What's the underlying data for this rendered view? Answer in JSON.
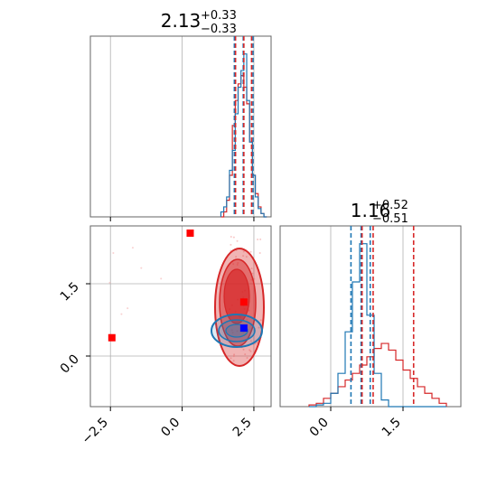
{
  "chart_data": {
    "type": "corner",
    "colors": {
      "blue": "#1f77b4",
      "red": "#d62728",
      "marker_red": "#ff0000",
      "marker_blue": "#0000ff"
    },
    "params": [
      {
        "title_value": "2.13",
        "title_plus": "+0.33",
        "title_minus": "−0.33",
        "range": [
          -3.2,
          3.1
        ]
      },
      {
        "title_value": "1.16",
        "title_plus": "+0.52",
        "title_minus": "−0.51",
        "range": [
          -1.05,
          2.7
        ]
      }
    ],
    "grid": true,
    "x_ticks_param1": [
      {
        "value": -2.5,
        "label": "−2.5"
      },
      {
        "value": 0.0,
        "label": "0.0"
      },
      {
        "value": 2.5,
        "label": "2.5"
      }
    ],
    "y_ticks_param2": [
      {
        "value": 0.0,
        "label": "0.0"
      },
      {
        "value": 1.5,
        "label": "1.5"
      }
    ],
    "x_ticks_param2": [
      {
        "value": 0.0,
        "label": "0.0"
      },
      {
        "value": 1.5,
        "label": "1.5"
      }
    ],
    "hist1": {
      "edges": [
        1.35,
        1.45,
        1.55,
        1.65,
        1.75,
        1.85,
        1.95,
        2.05,
        2.15,
        2.25,
        2.35,
        2.45,
        2.55,
        2.65,
        2.75,
        2.85,
        2.95
      ],
      "blue": [
        0.03,
        0.06,
        0.12,
        0.28,
        0.4,
        0.62,
        0.78,
        0.88,
        0.98,
        0.7,
        0.45,
        0.25,
        0.12,
        0.05,
        0.02,
        0.0
      ],
      "red": [
        0.0,
        0.03,
        0.1,
        0.25,
        0.55,
        0.7,
        0.8,
        0.85,
        0.78,
        0.68,
        0.45,
        0.25,
        0.14,
        0.06,
        0.02,
        0.0
      ]
    },
    "hist1_quantiles": {
      "blue": [
        1.82,
        2.13,
        2.47
      ],
      "red": [
        1.86,
        2.15,
        2.42
      ]
    },
    "hist2": {
      "edges": [
        -0.45,
        -0.3,
        -0.15,
        0.0,
        0.15,
        0.3,
        0.45,
        0.6,
        0.75,
        0.9,
        1.05,
        1.2,
        1.35,
        1.5,
        1.65,
        1.8,
        1.95,
        2.1,
        2.25,
        2.4
      ],
      "blue": [
        0.0,
        0.01,
        0.02,
        0.08,
        0.2,
        0.45,
        0.75,
        0.98,
        0.55,
        0.2,
        0.04,
        0.0,
        0.0,
        0.0,
        0.0,
        0.0,
        0.0,
        0.0,
        0.0
      ],
      "red": [
        0.01,
        0.02,
        0.05,
        0.08,
        0.12,
        0.16,
        0.2,
        0.25,
        0.3,
        0.35,
        0.38,
        0.34,
        0.28,
        0.22,
        0.17,
        0.12,
        0.08,
        0.05,
        0.02
      ]
    },
    "hist2_quantiles": {
      "blue": [
        0.42,
        0.63,
        0.82
      ],
      "red": [
        0.65,
        0.88,
        1.72
      ]
    },
    "markers": [
      {
        "x": -2.45,
        "y": 0.38,
        "color": "marker_red"
      },
      {
        "x": 0.28,
        "y": 2.55,
        "color": "marker_red"
      },
      {
        "x": 2.15,
        "y": 1.12,
        "color": "marker_red"
      },
      {
        "x": 2.15,
        "y": 0.58,
        "color": "marker_blue"
      }
    ]
  }
}
